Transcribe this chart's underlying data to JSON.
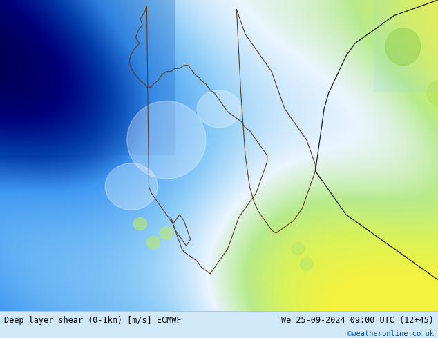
{
  "title_left": "Deep layer shear (0-1km) [m/s] ECMWF",
  "title_right": "We 25-09-2024 09:00 UTC (12+45)",
  "copyright": "©weatheronline.co.uk",
  "figsize": [
    6.34,
    4.9
  ],
  "dpi": 100,
  "bg_color": "#ffffff",
  "footer_bg": "#d0e8f8",
  "footer_text_color": "#000000",
  "copyright_color": "#0055aa",
  "map_colors": {
    "deep_blue": "#1565c0",
    "blue": "#2196f3",
    "light_blue": "#64b5f6",
    "pale_blue": "#b3d9f7",
    "white": "#e8f4fd",
    "light_green": "#c5e8a0",
    "yellow_green": "#d4ed7a",
    "yellow": "#f0f060"
  },
  "border_color": "#1a1a1a",
  "land_outline_color": "#5c3d1e"
}
